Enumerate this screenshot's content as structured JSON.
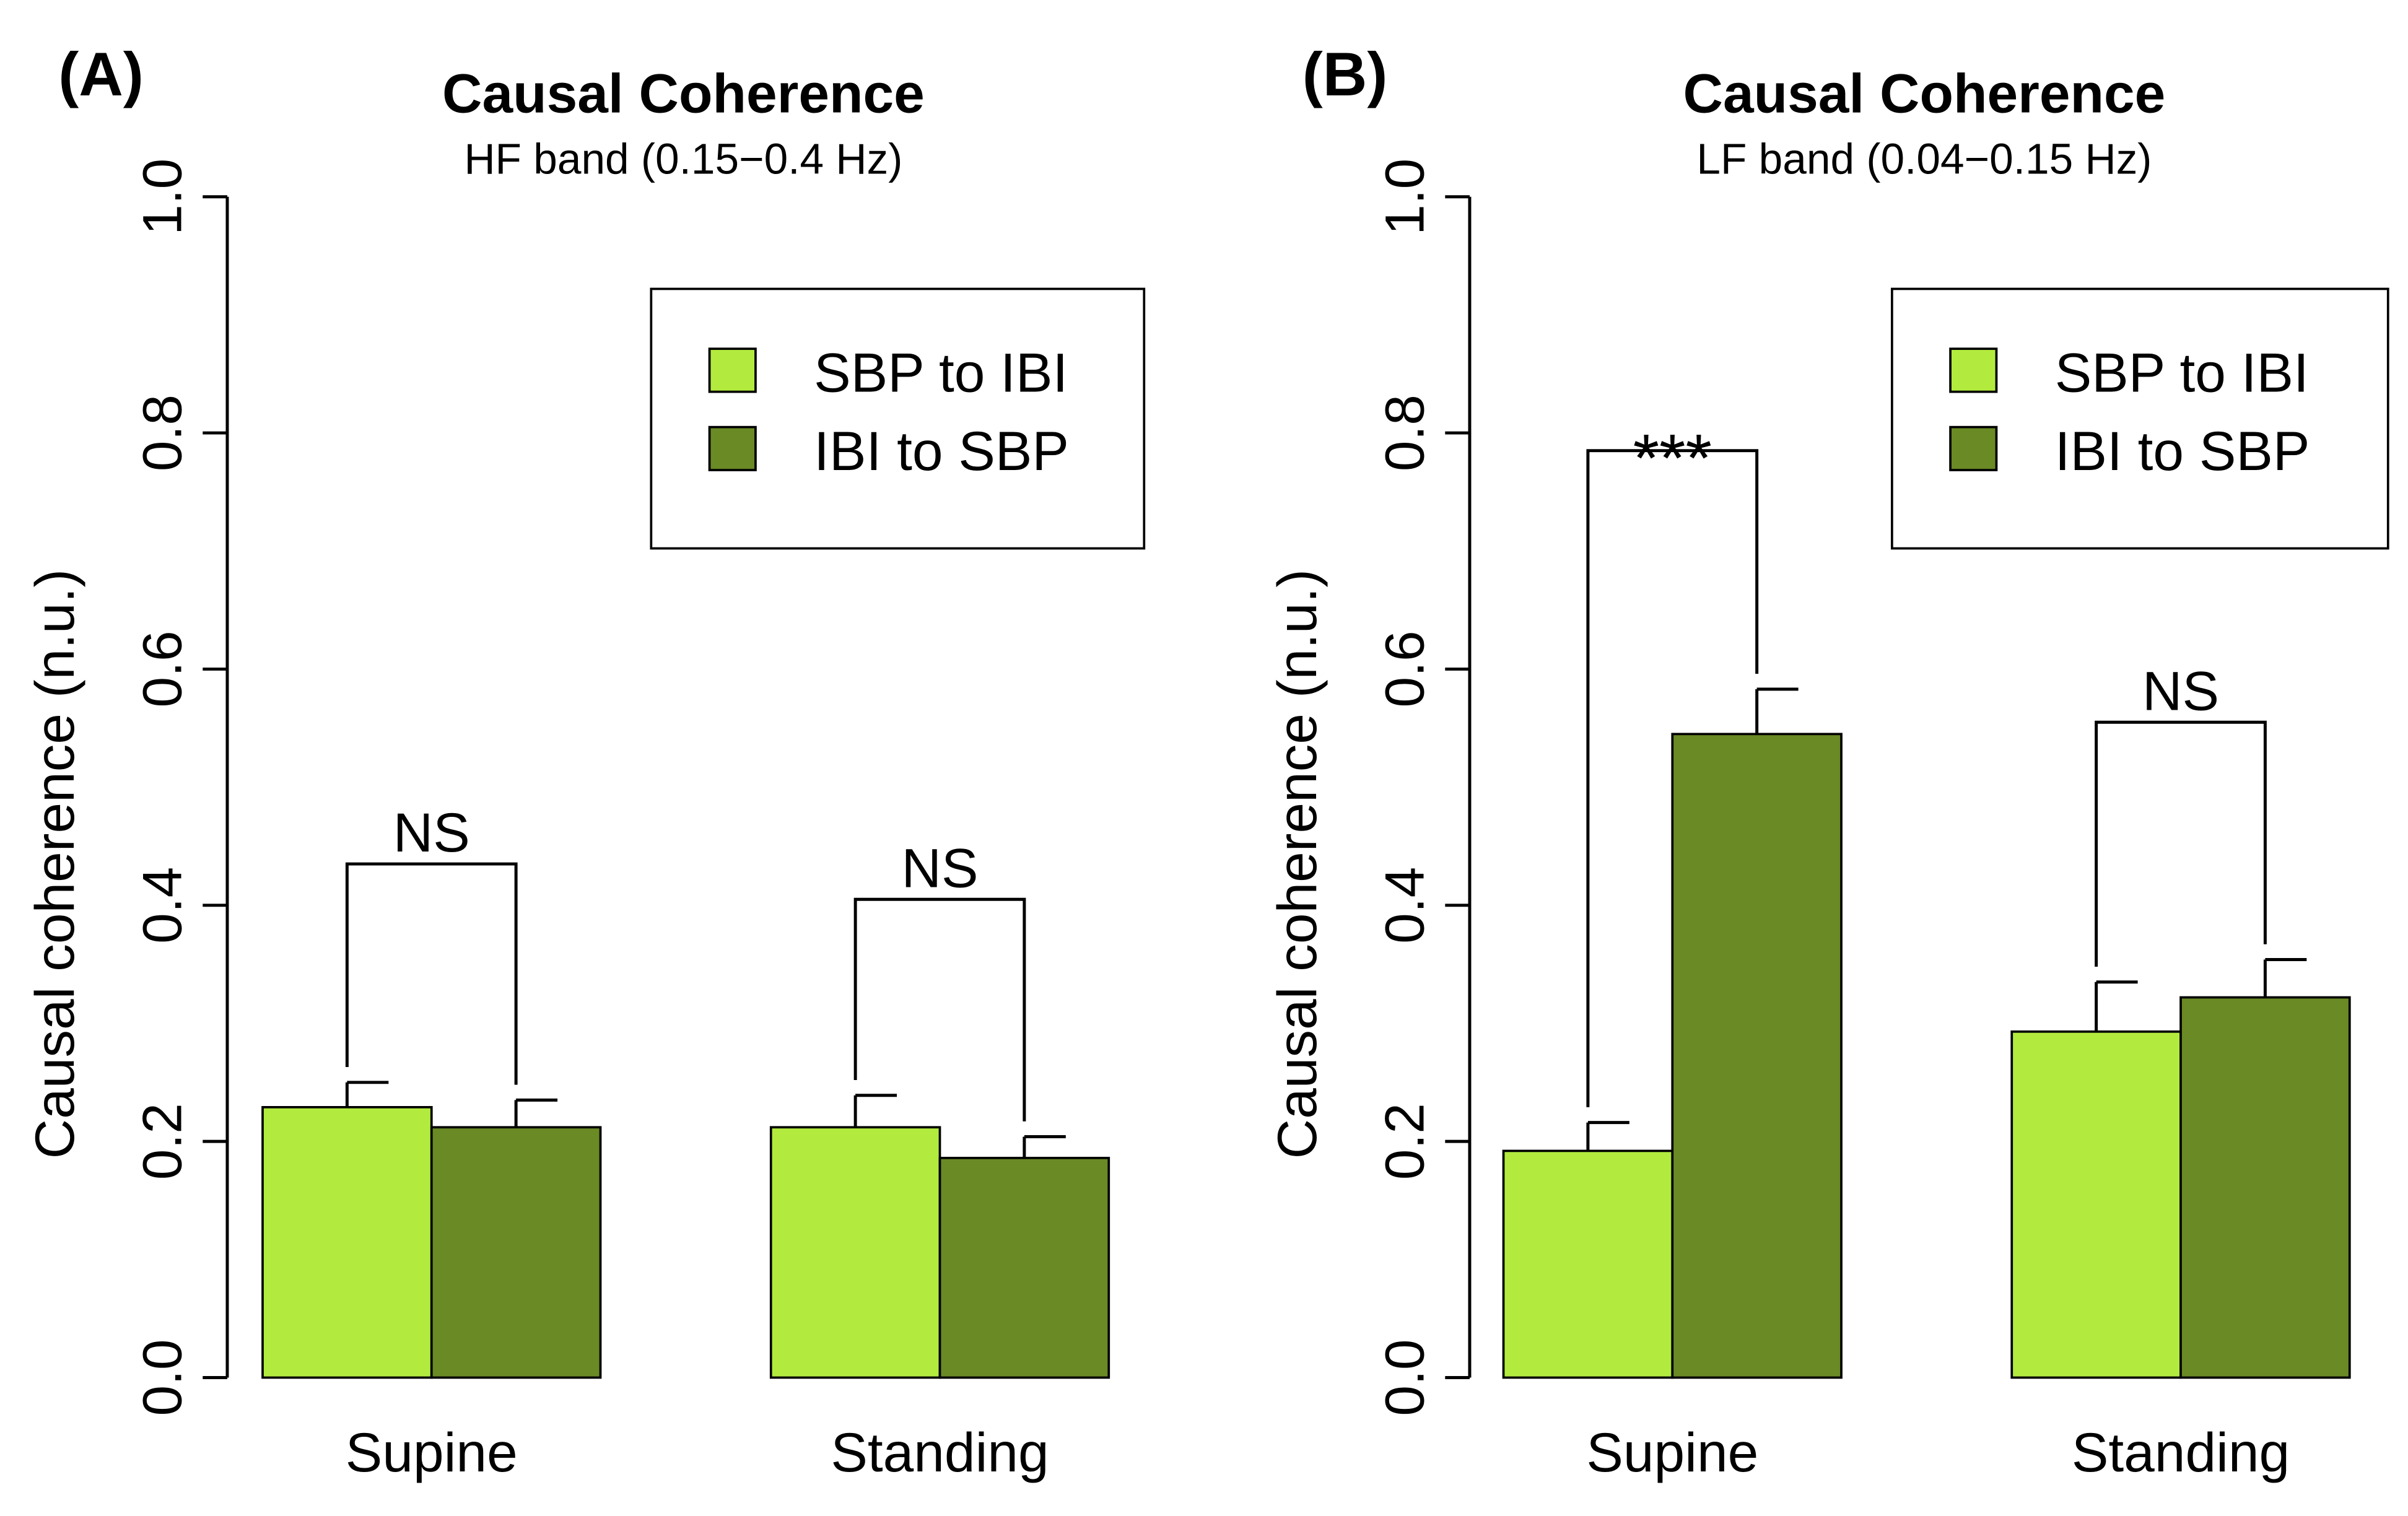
{
  "colors": {
    "sbp_to_ibi": "#b2eb3e",
    "ibi_to_sbp": "#6a8a25"
  },
  "chart_data": [
    {
      "type": "bar",
      "panel_label": "(A)",
      "title": "Causal Coherence",
      "subtitle": "HF band (0.15−0.4 Hz)",
      "ylabel": "Causal coherence (n.u.)",
      "xlabel": "",
      "ylim": [
        0,
        1.0
      ],
      "yticks": [
        "0.0",
        "0.2",
        "0.4",
        "0.6",
        "0.8",
        "1.0"
      ],
      "categories": [
        "Supine",
        "Standing"
      ],
      "legend": {
        "position": "top-right",
        "entries": [
          "SBP to IBI",
          "IBI to SBP"
        ]
      },
      "series": [
        {
          "name": "SBP to IBI",
          "values": [
            0.229,
            0.212
          ],
          "error_upper": [
            0.25,
            0.239
          ]
        },
        {
          "name": "IBI to SBP",
          "values": [
            0.212,
            0.186
          ],
          "error_upper": [
            0.235,
            0.204
          ]
        }
      ],
      "annotations": [
        "NS",
        "NS"
      ],
      "annotation_heights": [
        0.435,
        0.405
      ]
    },
    {
      "type": "bar",
      "panel_label": "(B)",
      "title": "Causal Coherence",
      "subtitle": "LF band (0.04−0.15 Hz)",
      "ylabel": "Causal coherence (n.u.)",
      "xlabel": "",
      "ylim": [
        0,
        1.0
      ],
      "yticks": [
        "0.0",
        "0.2",
        "0.4",
        "0.6",
        "0.8",
        "1.0"
      ],
      "categories": [
        "Supine",
        "Standing"
      ],
      "legend": {
        "position": "top-right",
        "entries": [
          "SBP to IBI",
          "IBI to SBP"
        ]
      },
      "series": [
        {
          "name": "SBP to IBI",
          "values": [
            0.192,
            0.293
          ],
          "error_upper": [
            0.216,
            0.335
          ]
        },
        {
          "name": "IBI to SBP",
          "values": [
            0.545,
            0.322
          ],
          "error_upper": [
            0.583,
            0.354
          ]
        }
      ],
      "annotations": [
        "***",
        "NS"
      ],
      "annotation_heights": [
        0.785,
        0.555
      ]
    }
  ]
}
